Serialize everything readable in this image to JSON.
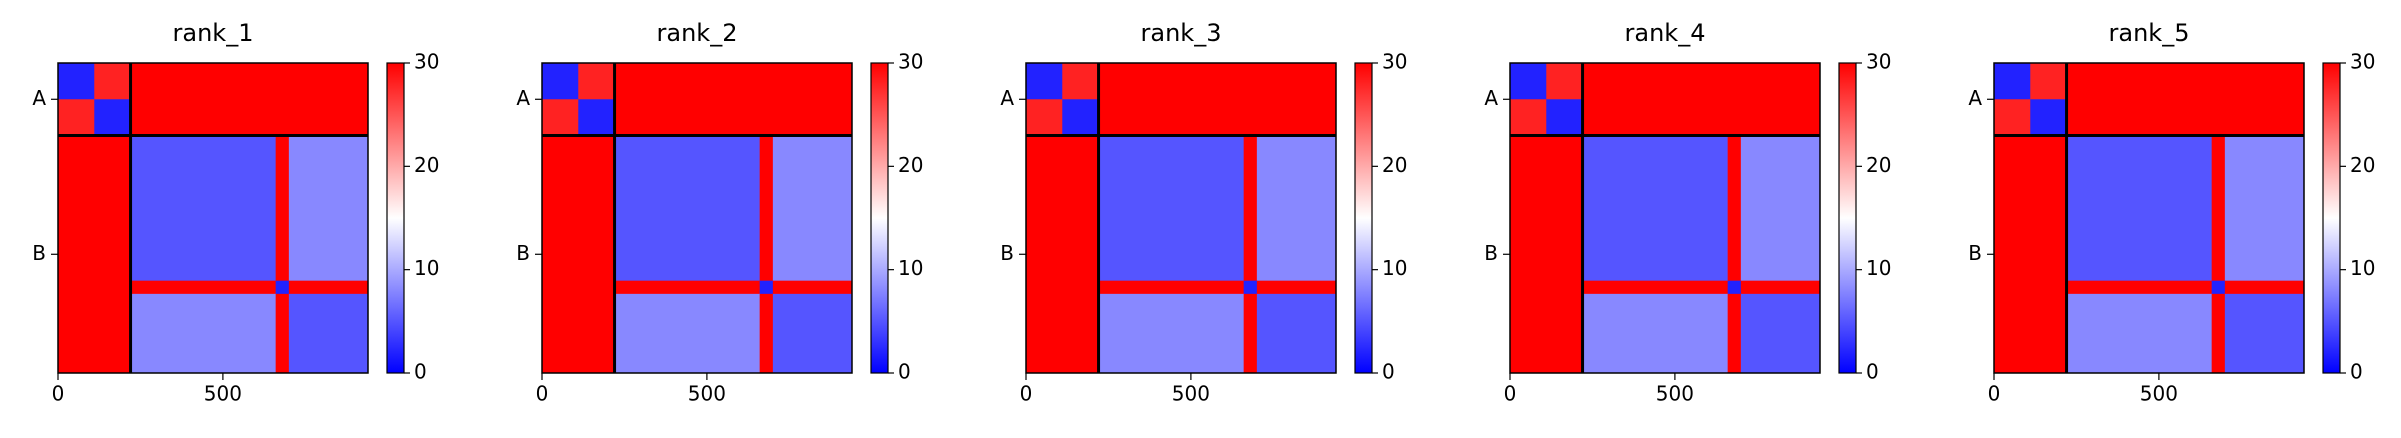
{
  "chart_data": [
    {
      "type": "heatmap",
      "title": "rank_1",
      "bins": [
        0,
        110,
        220,
        660,
        700,
        940
      ],
      "values": [
        [
          2,
          28,
          30,
          30,
          30
        ],
        [
          28,
          2,
          30,
          30,
          30
        ],
        [
          30,
          30,
          5,
          30,
          8
        ],
        [
          30,
          30,
          30,
          2,
          30
        ],
        [
          30,
          30,
          8,
          30,
          5
        ]
      ],
      "chain_breaks": [
        220
      ],
      "xlim": [
        0,
        940
      ],
      "ylim": [
        940,
        0
      ],
      "xticks": [
        0,
        500
      ],
      "yticks": [
        {
          "value": 110,
          "label": "A"
        },
        {
          "value": 580,
          "label": "B"
        }
      ],
      "clim": [
        0,
        30
      ],
      "cticks": [
        0,
        10,
        20,
        30
      ],
      "colormap": "bwr"
    },
    {
      "type": "heatmap",
      "title": "rank_2",
      "bins": [
        0,
        110,
        220,
        660,
        700,
        940
      ],
      "values": [
        [
          2,
          28,
          30,
          30,
          30
        ],
        [
          28,
          2,
          30,
          30,
          30
        ],
        [
          30,
          30,
          5,
          30,
          8
        ],
        [
          30,
          30,
          30,
          2,
          30
        ],
        [
          30,
          30,
          8,
          30,
          5
        ]
      ],
      "chain_breaks": [
        220
      ],
      "xlim": [
        0,
        940
      ],
      "ylim": [
        940,
        0
      ],
      "xticks": [
        0,
        500
      ],
      "yticks": [
        {
          "value": 110,
          "label": "A"
        },
        {
          "value": 580,
          "label": "B"
        }
      ],
      "clim": [
        0,
        30
      ],
      "cticks": [
        0,
        10,
        20,
        30
      ],
      "colormap": "bwr"
    },
    {
      "type": "heatmap",
      "title": "rank_3",
      "bins": [
        0,
        110,
        220,
        660,
        700,
        940
      ],
      "values": [
        [
          2,
          28,
          30,
          30,
          30
        ],
        [
          28,
          2,
          30,
          30,
          30
        ],
        [
          30,
          30,
          5,
          30,
          8
        ],
        [
          30,
          30,
          30,
          2,
          30
        ],
        [
          30,
          30,
          8,
          30,
          5
        ]
      ],
      "chain_breaks": [
        220
      ],
      "xlim": [
        0,
        940
      ],
      "ylim": [
        940,
        0
      ],
      "xticks": [
        0,
        500
      ],
      "yticks": [
        {
          "value": 110,
          "label": "A"
        },
        {
          "value": 580,
          "label": "B"
        }
      ],
      "clim": [
        0,
        30
      ],
      "cticks": [
        0,
        10,
        20,
        30
      ],
      "colormap": "bwr"
    },
    {
      "type": "heatmap",
      "title": "rank_4",
      "bins": [
        0,
        110,
        220,
        660,
        700,
        940
      ],
      "values": [
        [
          2,
          28,
          30,
          30,
          30
        ],
        [
          28,
          2,
          30,
          30,
          30
        ],
        [
          30,
          30,
          5,
          30,
          8
        ],
        [
          30,
          30,
          30,
          2,
          30
        ],
        [
          30,
          30,
          8,
          30,
          5
        ]
      ],
      "chain_breaks": [
        220
      ],
      "xlim": [
        0,
        940
      ],
      "ylim": [
        940,
        0
      ],
      "xticks": [
        0,
        500
      ],
      "yticks": [
        {
          "value": 110,
          "label": "A"
        },
        {
          "value": 580,
          "label": "B"
        }
      ],
      "clim": [
        0,
        30
      ],
      "cticks": [
        0,
        10,
        20,
        30
      ],
      "colormap": "bwr"
    },
    {
      "type": "heatmap",
      "title": "rank_5",
      "bins": [
        0,
        110,
        220,
        660,
        700,
        940
      ],
      "values": [
        [
          2,
          28,
          30,
          30,
          30
        ],
        [
          28,
          2,
          30,
          30,
          30
        ],
        [
          30,
          30,
          5,
          30,
          8
        ],
        [
          30,
          30,
          30,
          2,
          30
        ],
        [
          30,
          30,
          8,
          30,
          5
        ]
      ],
      "chain_breaks": [
        220
      ],
      "xlim": [
        0,
        940
      ],
      "ylim": [
        940,
        0
      ],
      "xticks": [
        0,
        500
      ],
      "yticks": [
        {
          "value": 110,
          "label": "A"
        },
        {
          "value": 580,
          "label": "B"
        }
      ],
      "clim": [
        0,
        30
      ],
      "cticks": [
        0,
        10,
        20,
        30
      ],
      "colormap": "bwr"
    }
  ]
}
